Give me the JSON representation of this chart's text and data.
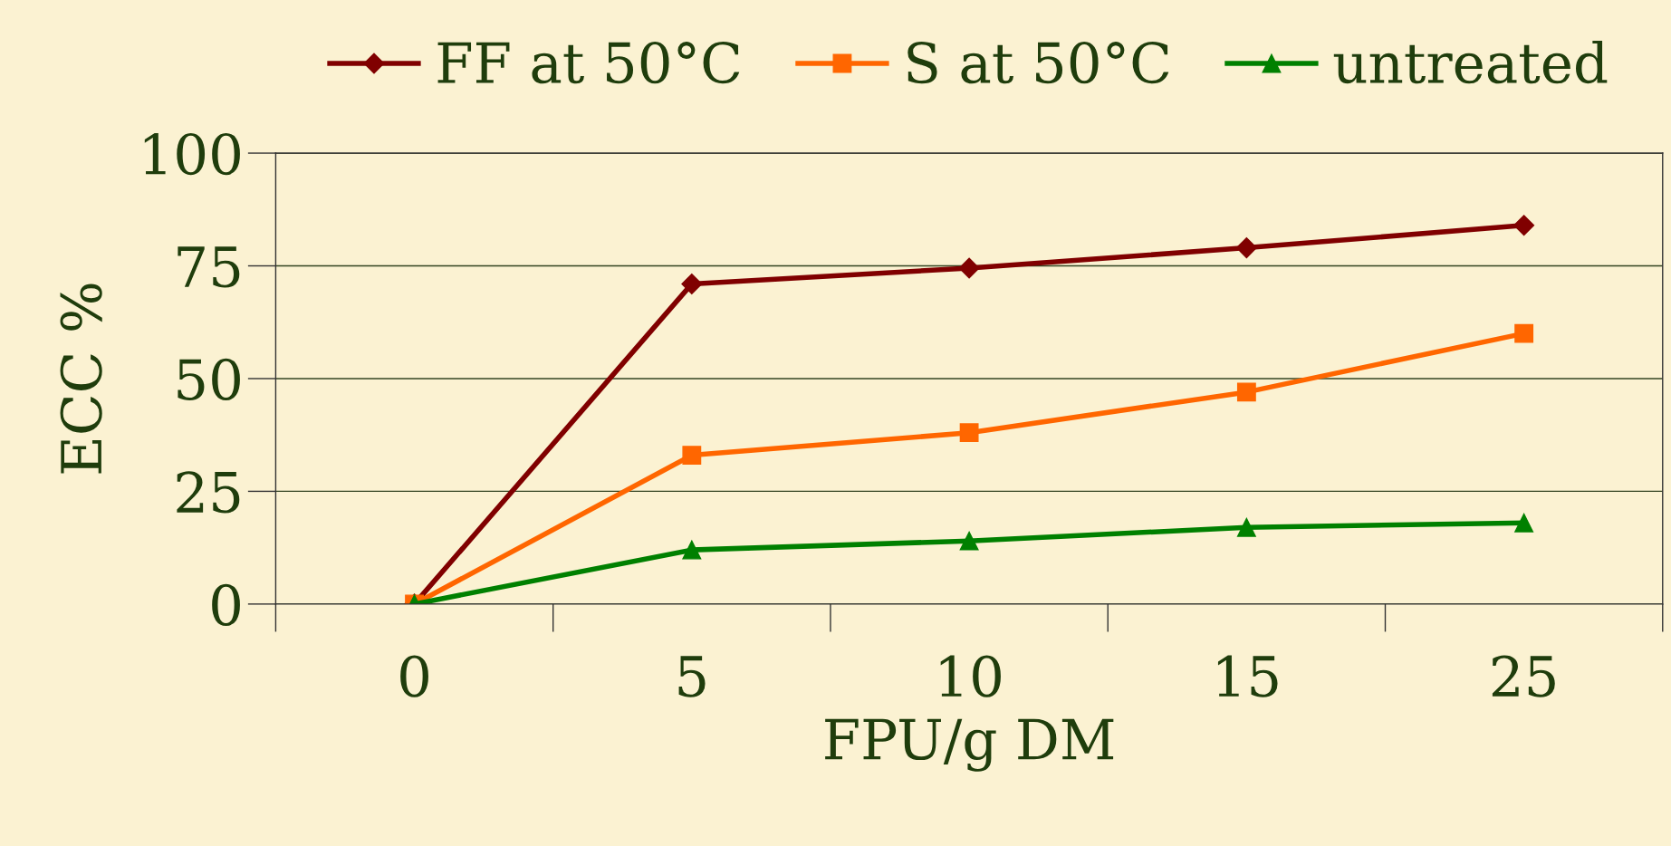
{
  "chart_data": {
    "type": "line",
    "xlabel": "FPU/g DM",
    "ylabel": "ECC %",
    "categories": [
      "0",
      "5",
      "10",
      "15",
      "25"
    ],
    "series": [
      {
        "name": "FF at 50°C",
        "color": "#800000",
        "marker": "diamond",
        "values": [
          0,
          71,
          74.5,
          79,
          84
        ]
      },
      {
        "name": "S at 50°C",
        "color": "#ff6600",
        "marker": "square",
        "values": [
          0,
          33,
          38,
          47,
          60
        ]
      },
      {
        "name": "untreated",
        "color": "#008000",
        "marker": "triangle",
        "values": [
          0,
          12,
          14,
          17,
          18
        ]
      }
    ],
    "ylim": [
      0,
      100
    ],
    "yticks": [
      0,
      25,
      50,
      75,
      100
    ],
    "grid": "y",
    "legend": "top",
    "line_style": "solid"
  }
}
